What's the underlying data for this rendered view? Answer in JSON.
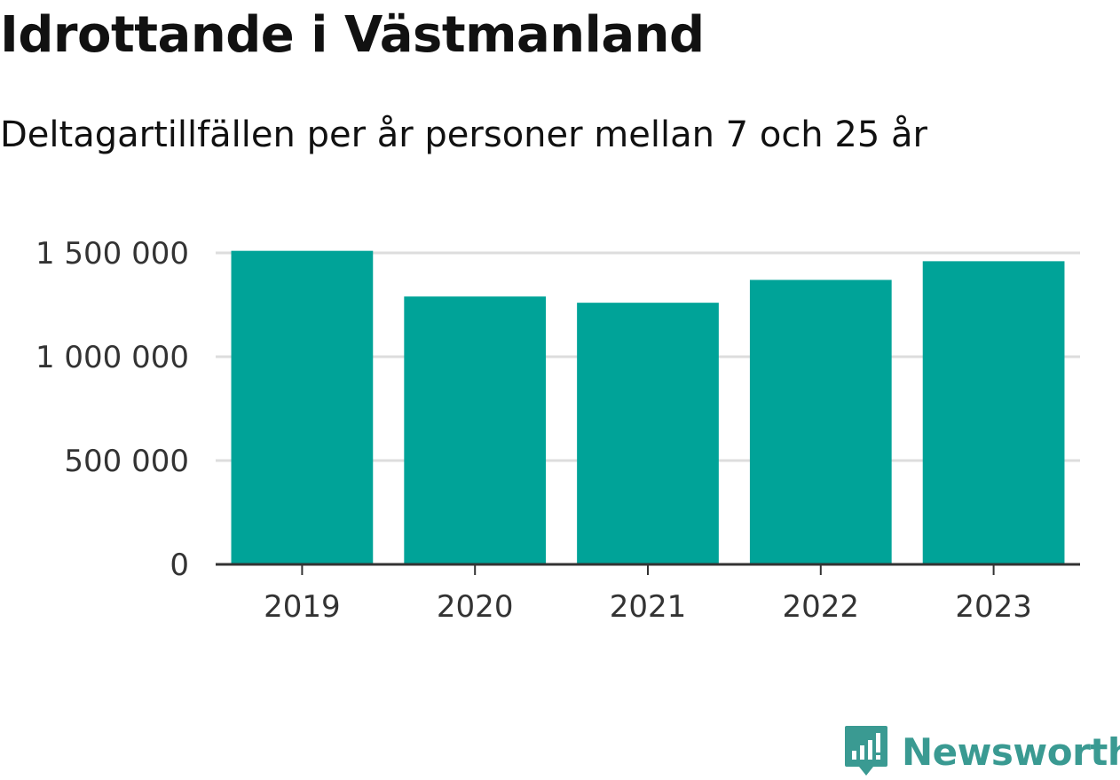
{
  "chart_data": {
    "type": "bar",
    "title": "Idrottande i Västmanland",
    "subtitle": "Deltagartillfällen per år personer mellan 7 och 25 år",
    "categories": [
      "2019",
      "2020",
      "2021",
      "2022",
      "2023"
    ],
    "values": [
      1510000,
      1290000,
      1260000,
      1370000,
      1460000
    ],
    "ylim": [
      0,
      1500000
    ],
    "yticks": [
      0,
      500000,
      1000000,
      1500000
    ],
    "ytick_labels": [
      "0",
      "500 000",
      "1 000 000",
      "1 500 000"
    ],
    "grid": true,
    "bar_color": "#00a398",
    "xlabel": "",
    "ylabel": ""
  },
  "brand": {
    "name": "Newsworthy",
    "color": "#3a9a92",
    "icon": "newsworthy-logo-icon"
  }
}
